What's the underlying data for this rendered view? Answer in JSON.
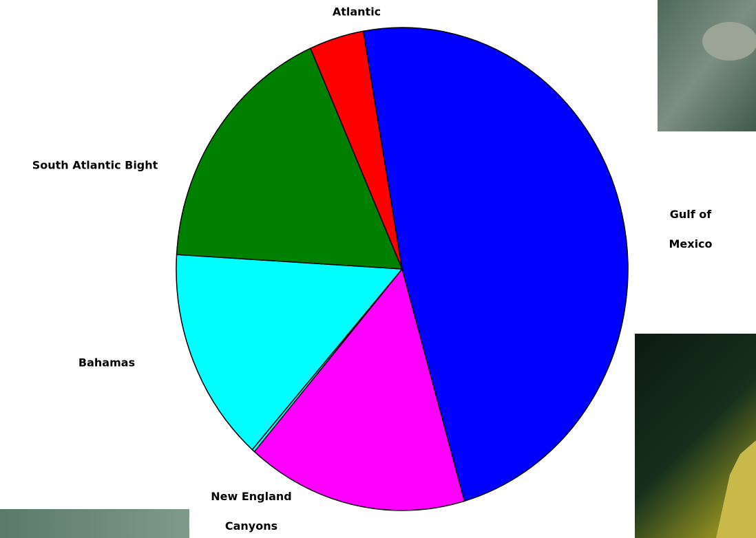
{
  "chart_data": {
    "type": "pie",
    "categories": [
      "Gulf of Mexico",
      null,
      "New England Canyons",
      "Bahamas",
      "South Atlantic Bight",
      "Atlantic"
    ],
    "values": [
      48.3,
      15.8,
      0.2,
      14.4,
      17.4,
      3.9
    ],
    "colors": [
      "#0000ff",
      "#ff00ff",
      "#00ffff",
      "#00ffff",
      "#008000",
      "#ff0000"
    ]
  }
}
